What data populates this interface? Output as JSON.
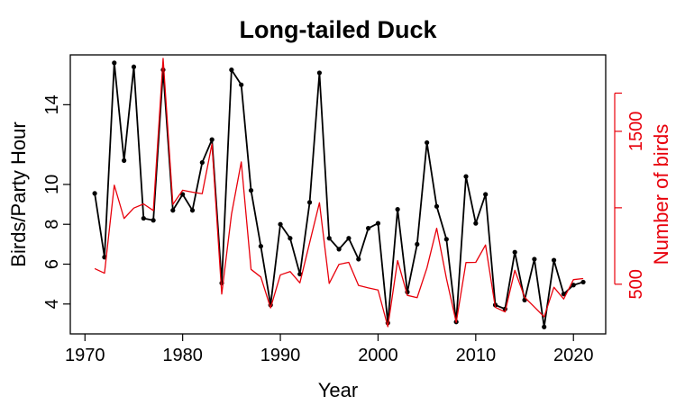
{
  "chart_data": {
    "type": "line",
    "title": "Long-tailed Duck",
    "xlabel": "Year",
    "ylabel": "Birds/Party Hour",
    "y2label": "Number of birds",
    "xlim": [
      1968.5,
      2023.3
    ],
    "ylim": [
      2.5,
      16.5
    ],
    "y2lim": [
      175,
      2000
    ],
    "x_ticks": [
      1970,
      1980,
      1990,
      2000,
      2010,
      2020
    ],
    "y_ticks": [
      4,
      6,
      8,
      10,
      14
    ],
    "y2_ticks": [
      500,
      1500
    ],
    "y2_minor_ticks": [
      1000,
      1750
    ],
    "grid": false,
    "colors": {
      "primary": "#000000",
      "secondary": "#e8000b"
    },
    "x": [
      1971,
      1972,
      1973,
      1974,
      1975,
      1976,
      1977,
      1978,
      1979,
      1980,
      1981,
      1982,
      1983,
      1984,
      1985,
      1986,
      1987,
      1988,
      1989,
      1990,
      1991,
      1992,
      1993,
      1994,
      1995,
      1996,
      1997,
      1998,
      1999,
      2000,
      2001,
      2002,
      2003,
      2004,
      2005,
      2006,
      2007,
      2008,
      2009,
      2010,
      2011,
      2012,
      2013,
      2014,
      2015,
      2016,
      2017,
      2018,
      2019,
      2020,
      2021
    ],
    "series": [
      {
        "axis": "left",
        "color": "#000000",
        "markers": true,
        "values": [
          9.55,
          6.35,
          16.1,
          11.2,
          15.9,
          8.3,
          8.2,
          15.75,
          8.7,
          9.5,
          8.7,
          11.1,
          12.25,
          5.05,
          15.75,
          15.0,
          9.7,
          6.9,
          3.95,
          8.0,
          7.3,
          5.5,
          9.1,
          15.6,
          7.3,
          6.75,
          7.3,
          6.25,
          7.8,
          8.05,
          3.05,
          8.75,
          4.6,
          7.0,
          12.1,
          8.9,
          7.25,
          3.1,
          10.4,
          8.05,
          9.5,
          3.95,
          3.75,
          6.6,
          4.2,
          6.25,
          2.85,
          6.2,
          4.5,
          4.95,
          5.1
        ]
      },
      {
        "axis": "right",
        "color": "#e8000b",
        "markers": false,
        "values": [
          602,
          572,
          1148,
          930,
          998,
          1025,
          982,
          1977,
          1022,
          1115,
          1102,
          1092,
          1417,
          436,
          958,
          1300,
          597,
          547,
          345,
          561,
          583,
          509,
          772,
          1033,
          505,
          630,
          643,
          492,
          476,
          462,
          222,
          655,
          427,
          412,
          606,
          866,
          537,
          250,
          642,
          643,
          757,
          349,
          319,
          591,
          415,
          351,
          287,
          480,
          403,
          530,
          537
        ]
      }
    ]
  }
}
